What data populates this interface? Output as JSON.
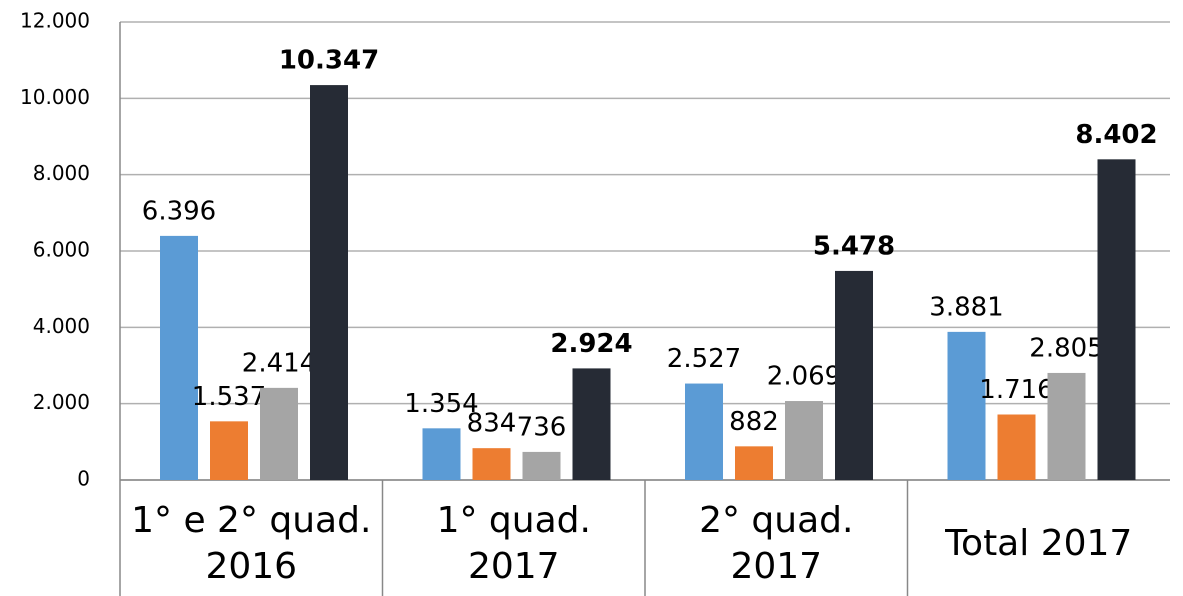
{
  "chart_data": {
    "type": "bar",
    "categories": [
      "1° e 2° quad. 2016",
      "1° quad. 2017",
      "2° quad. 2017",
      "Total 2017"
    ],
    "series": [
      {
        "color": "#5b9bd5",
        "values": [
          6396,
          1354,
          2527,
          3881
        ],
        "value_labels": [
          "6.396",
          "1.354",
          "2.527",
          "3.881"
        ]
      },
      {
        "color": "#ed7d31",
        "values": [
          1537,
          834,
          882,
          1716
        ],
        "value_labels": [
          "1.537",
          "834",
          "882",
          "1.716"
        ]
      },
      {
        "color": "#a5a5a5",
        "values": [
          2414,
          736,
          2069,
          2805
        ],
        "value_labels": [
          "2.414",
          "736",
          "2.069",
          "2.805"
        ]
      },
      {
        "color": "#262b35",
        "values": [
          10347,
          2924,
          5478,
          8402
        ],
        "value_labels": [
          "10.347",
          "2.924",
          "5.478",
          "8.402"
        ]
      }
    ],
    "ylim": [
      0,
      12000
    ],
    "yticks": [
      0,
      {
        "value": 2000,
        "label": "2.000"
      },
      {
        "value": 4000,
        "label": "4.000"
      },
      {
        "value": 6000,
        "label": "6.000"
      },
      {
        "value": 8000,
        "label": "8.000"
      },
      {
        "value": 10000,
        "label": "10.000"
      },
      {
        "value": 12000,
        "label": "12.000"
      }
    ],
    "grid": true
  }
}
